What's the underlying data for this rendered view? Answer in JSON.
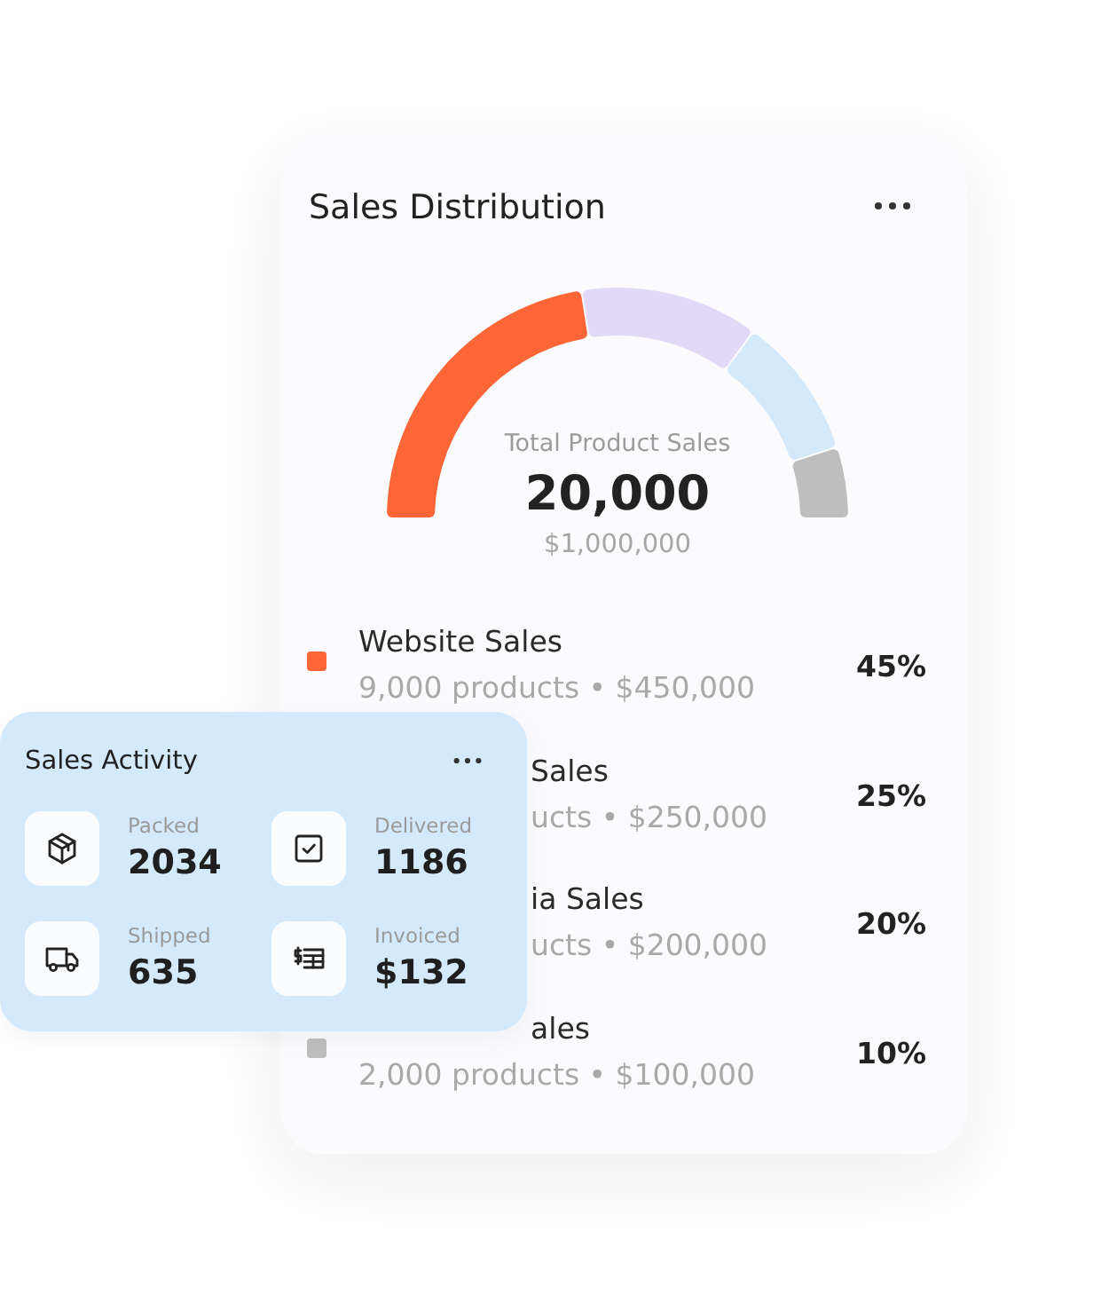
{
  "chart_data": [
    {
      "type": "donut",
      "title": "Sales Distribution",
      "categories": [
        "Website Sales",
        null,
        null,
        null
      ],
      "values": [
        45,
        25,
        20,
        10
      ],
      "colors": [
        "#fe6637",
        "#e2d9f8",
        "#d4e9fb",
        "#bebebe"
      ],
      "legend": "bottom",
      "annotations": [
        "Total Product Sales",
        "20,000",
        "$1,000,000",
        "9,000 products • $450,000",
        "45%",
        "Sales",
        "ucts • $250,000",
        "25%",
        "ia Sales",
        "ucts • $200,000",
        "20%",
        "ales",
        "2,000 products • $100,000",
        "10%"
      ]
    },
    {
      "type": "other",
      "title": "Sales Activity",
      "annotations": [
        "Packed",
        "2034",
        "Delivered",
        "1186",
        "Shipped",
        "635",
        "Invoiced",
        "$132"
      ]
    }
  ]
}
